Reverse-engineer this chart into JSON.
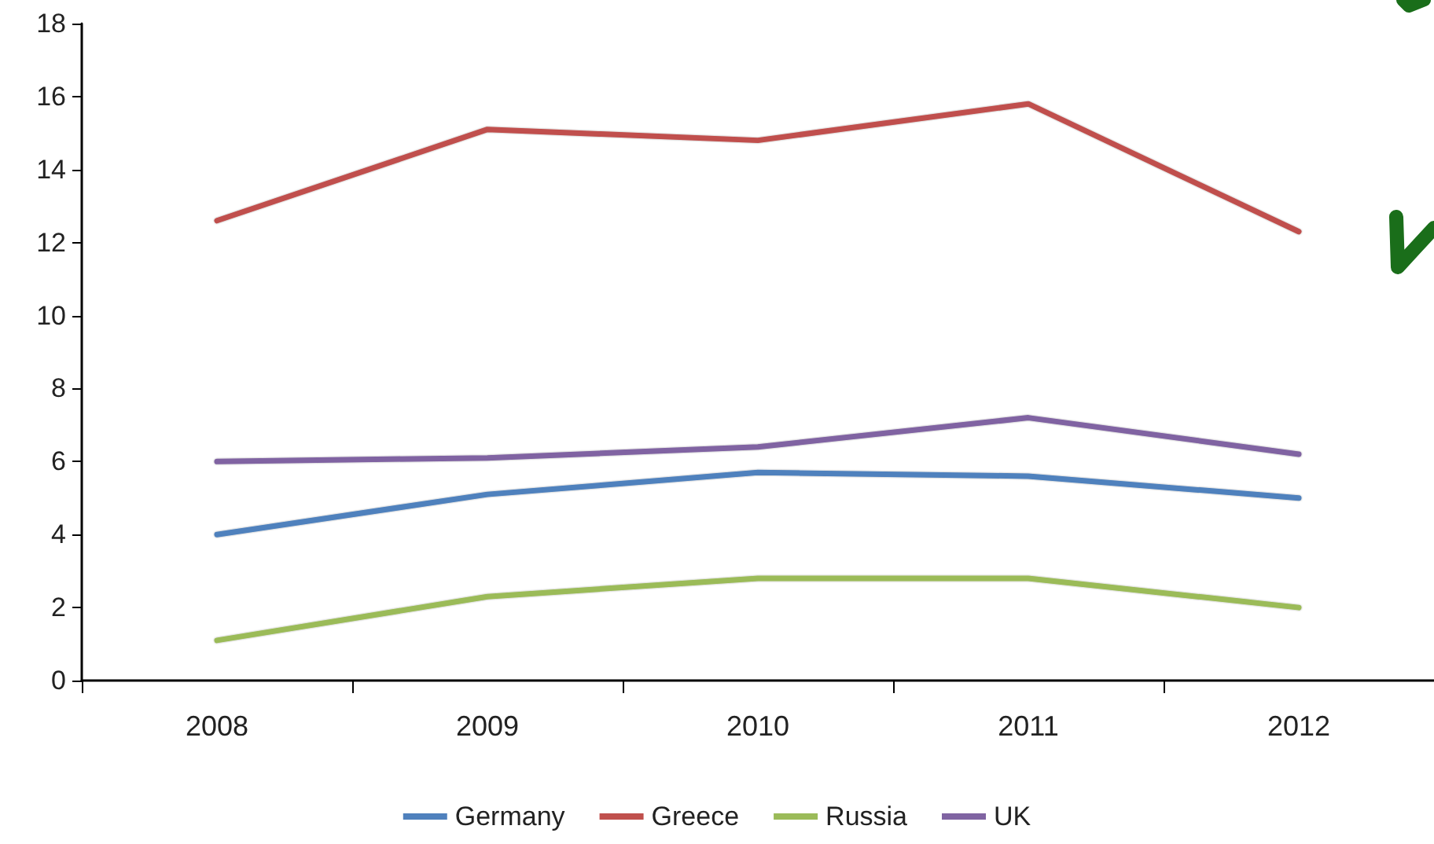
{
  "chart_data": {
    "type": "line",
    "categories": [
      "2008",
      "2009",
      "2010",
      "2011",
      "2012"
    ],
    "series": [
      {
        "name": "Germany",
        "color": "#4f81bd",
        "values": [
          4.0,
          5.1,
          5.7,
          5.6,
          5.0
        ]
      },
      {
        "name": "Greece",
        "color": "#c0504d",
        "values": [
          12.6,
          15.1,
          14.8,
          15.8,
          12.3
        ]
      },
      {
        "name": "Russia",
        "color": "#9bbb59",
        "values": [
          1.1,
          2.3,
          2.8,
          2.8,
          2.0
        ]
      },
      {
        "name": "UK",
        "color": "#8064a2",
        "values": [
          6.0,
          6.1,
          6.4,
          7.2,
          6.2
        ]
      }
    ],
    "ylim": [
      0,
      18
    ],
    "yticks": [
      0,
      2,
      4,
      6,
      8,
      10,
      12,
      14,
      16,
      18
    ],
    "grid": false,
    "legend": "bottom",
    "marker": "none",
    "line_style": "solid"
  }
}
